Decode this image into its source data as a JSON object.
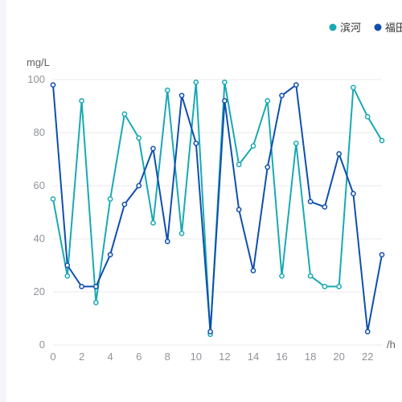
{
  "chart_data": {
    "type": "line",
    "y_unit": "mg/L",
    "x_unit": "/h",
    "x": [
      0,
      1,
      2,
      3,
      4,
      5,
      6,
      7,
      8,
      9,
      10,
      11,
      12,
      13,
      14,
      15,
      16,
      17,
      18,
      19,
      20,
      21,
      22,
      23
    ],
    "x_ticks": [
      0,
      2,
      4,
      6,
      8,
      10,
      12,
      14,
      16,
      18,
      20,
      22
    ],
    "ylim": [
      0,
      100
    ],
    "y_ticks": [
      0,
      20,
      40,
      60,
      80,
      100
    ],
    "grid": true,
    "legend_position": "top-right",
    "series": [
      {
        "name": "滨河",
        "color": "#19a9b4",
        "values": [
          55,
          26,
          92,
          16,
          55,
          87,
          78,
          46,
          96,
          42,
          99,
          4,
          99,
          68,
          75,
          92,
          26,
          76,
          26,
          22,
          22,
          97,
          86,
          77
        ]
      },
      {
        "name": "福田",
        "color": "#0f4fae",
        "values": [
          98,
          30,
          22,
          22,
          34,
          53,
          60,
          74,
          39,
          94,
          76,
          5,
          92,
          51,
          28,
          67,
          94,
          98,
          54,
          52,
          72,
          57,
          5,
          34
        ]
      }
    ]
  }
}
